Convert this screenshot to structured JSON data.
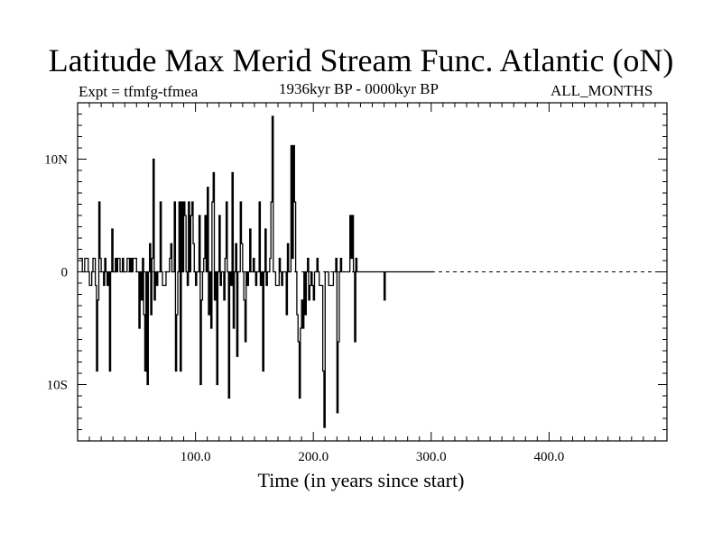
{
  "chart_data": {
    "type": "line",
    "title": "Latitude Max Merid Stream Func. Atlantic (oN)",
    "subtitle_left": "Expt = tfmfg-tfmea",
    "subtitle_center": "1936kyr BP - 0000kyr BP",
    "subtitle_right": "ALL_MONTHS",
    "xlabel": "Time (in years since start)",
    "ylabel": "",
    "xlim": [
      0,
      500
    ],
    "ylim": [
      -15,
      15
    ],
    "x_ticks": [
      100,
      200,
      300,
      400
    ],
    "x_tick_labels": [
      "100.0",
      "200.0",
      "300.0",
      "400.0"
    ],
    "y_ticks": [
      -10,
      0,
      10
    ],
    "y_tick_labels": [
      "10S",
      "0",
      "10N"
    ],
    "reference_line": 0,
    "series": [
      {
        "name": "Latitude Max Merid Stream Func.",
        "color": "#000000",
        "x_start": 1,
        "x_step": 1,
        "values": [
          1.2,
          1.2,
          1.2,
          0,
          0,
          1.2,
          1.2,
          1.2,
          0,
          -1.2,
          -1.2,
          0,
          1.2,
          1.2,
          -1.2,
          -8.8,
          -2.5,
          6.2,
          1.2,
          0,
          0,
          -1.2,
          1.2,
          0,
          -1.2,
          0,
          -8.8,
          0,
          3.8,
          0,
          0,
          1.2,
          0,
          1.2,
          1.2,
          0,
          0,
          1.2,
          0,
          0,
          0,
          1.2,
          1.2,
          0,
          1.2,
          0,
          1.2,
          1.2,
          1.2,
          0,
          0,
          -5.0,
          0,
          -2.5,
          1.2,
          -3.8,
          -8.8,
          0,
          -10.0,
          0,
          2.5,
          -3.8,
          1.2,
          10.0,
          -2.5,
          0,
          -1.2,
          0,
          0,
          6.2,
          0,
          -1.2,
          -1.2,
          -1.2,
          0,
          0,
          0,
          1.2,
          2.5,
          0,
          0,
          6.2,
          -8.8,
          -3.8,
          0,
          6.2,
          -8.8,
          6.2,
          0,
          6.2,
          5.0,
          0,
          -1.2,
          6.2,
          0,
          5.0,
          6.2,
          2.5,
          0,
          -1.2,
          0,
          0,
          5.0,
          -10.0,
          -2.5,
          0,
          1.2,
          5.0,
          0,
          7.5,
          -3.8,
          0,
          -5.0,
          6.2,
          8.8,
          -2.5,
          0,
          -10.0,
          0,
          5.0,
          -1.2,
          0,
          0,
          -2.5,
          1.2,
          6.2,
          0,
          -11.2,
          0,
          -1.2,
          8.8,
          -5.0,
          0,
          2.5,
          -7.5,
          0,
          0,
          6.2,
          2.5,
          0,
          -2.5,
          -6.2,
          0,
          -1.2,
          0,
          3.8,
          0,
          0,
          1.2,
          0,
          -1.2,
          0,
          0,
          6.2,
          -1.2,
          0,
          -8.8,
          0,
          3.8,
          -1.2,
          0,
          0,
          1.2,
          6.2,
          13.8,
          0,
          0,
          -1.2,
          -1.2,
          -1.2,
          1.2,
          0,
          -1.2,
          0,
          0,
          0,
          -3.8,
          2.5,
          0,
          0,
          11.2,
          1.2,
          11.2,
          6.2,
          0,
          -3.8,
          -6.2,
          -11.2,
          -5.0,
          -2.5,
          -5.0,
          0,
          -3.8,
          0,
          1.2,
          -2.5,
          -1.2,
          0,
          -1.2,
          -2.5,
          0,
          0,
          1.2,
          0,
          -1.2,
          -1.2,
          -1.2,
          -8.8,
          -13.8,
          0,
          0,
          0,
          -1.2,
          -1.2,
          -1.2,
          -1.2,
          0,
          0,
          1.2,
          -12.5,
          -6.2,
          0,
          1.2,
          0,
          0,
          0,
          0,
          0,
          0,
          0,
          5.0,
          1.2,
          5.0,
          0,
          -6.2,
          1.2,
          0,
          0,
          0,
          0,
          0,
          0,
          0,
          0,
          0,
          0,
          0,
          0,
          0,
          0,
          0,
          0,
          0,
          0,
          0,
          0,
          0,
          0,
          0,
          -2.5,
          0,
          0,
          0,
          0,
          0,
          0,
          0,
          0,
          0,
          0,
          0,
          0,
          0,
          0,
          0,
          0,
          0,
          0,
          0,
          0,
          0,
          0,
          0,
          0,
          0,
          0,
          0,
          0,
          0,
          0,
          0,
          0,
          0,
          0,
          0,
          0,
          0,
          0,
          0,
          0,
          0,
          0
        ]
      }
    ]
  }
}
